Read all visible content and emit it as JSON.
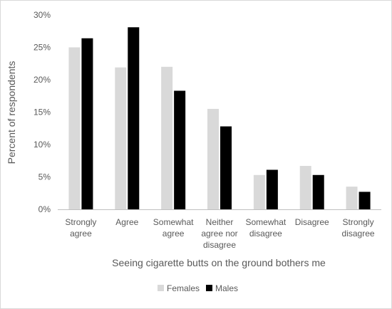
{
  "chart_data": {
    "type": "bar",
    "title": "",
    "xlabel": "Seeing cigarette butts on the ground bothers me",
    "ylabel": "Percent of respondents",
    "ylim": [
      0,
      30
    ],
    "y_ticks": [
      "0%",
      "5%",
      "10%",
      "15%",
      "20%",
      "25%",
      "30%"
    ],
    "grid": false,
    "legend_position": "bottom",
    "categories": [
      [
        "Strongly",
        "agree"
      ],
      [
        "Agree"
      ],
      [
        "Somewhat",
        "agree"
      ],
      [
        "Neither",
        "agree nor",
        "disagree"
      ],
      [
        "Somewhat",
        "disagree"
      ],
      [
        "Disagree"
      ],
      [
        "Strongly",
        "disagree"
      ]
    ],
    "series": [
      {
        "name": "Females",
        "color": "#d9d9d9",
        "values": [
          25.0,
          21.9,
          22.0,
          15.5,
          5.3,
          6.7,
          3.5
        ]
      },
      {
        "name": "Males",
        "color": "#000000",
        "values": [
          26.4,
          28.1,
          18.3,
          12.8,
          6.1,
          5.3,
          2.7
        ]
      }
    ]
  }
}
